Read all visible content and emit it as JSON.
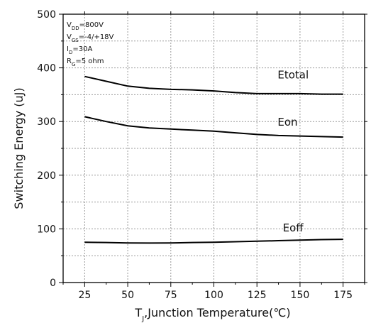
{
  "chart_data": {
    "type": "line",
    "xlabel": {
      "prefix": "T",
      "sub": "J",
      "rest": ",Junction Temperature(℃)"
    },
    "ylabel": "Switching Energy (uJ)",
    "xlim": [
      12.5,
      187.5
    ],
    "ylim": [
      0,
      500
    ],
    "x_ticks": [
      25,
      50,
      75,
      100,
      125,
      150,
      175
    ],
    "y_ticks": [
      0,
      100,
      200,
      300,
      400,
      500
    ],
    "grid": true,
    "conditions": [
      {
        "main": "V",
        "sub": "DD",
        "rest": "=800V"
      },
      {
        "main": "V",
        "sub": "GS",
        "rest": "=-4/+18V"
      },
      {
        "main": "I",
        "sub": "D",
        "rest": "=30A"
      },
      {
        "main": "R",
        "sub": "G",
        "rest": "=5 ohm"
      }
    ],
    "series": [
      {
        "name": "Etotal",
        "label_at": [
          137,
          380
        ],
        "x": [
          25,
          37.5,
          50,
          62.5,
          75,
          87.5,
          100,
          112.5,
          125,
          137.5,
          150,
          162.5,
          175
        ],
        "y": [
          384,
          375,
          366,
          362,
          360,
          359,
          357,
          354,
          352,
          352,
          352,
          351,
          351
        ]
      },
      {
        "name": "Eon",
        "label_at": [
          137,
          292
        ],
        "x": [
          25,
          37.5,
          50,
          62.5,
          75,
          87.5,
          100,
          112.5,
          125,
          137.5,
          150,
          162.5,
          175
        ],
        "y": [
          309,
          300,
          292,
          288,
          286,
          284,
          282,
          279,
          276,
          274,
          273,
          272,
          271
        ]
      },
      {
        "name": "Eoff",
        "label_at": [
          140,
          95
        ],
        "x": [
          25,
          37.5,
          50,
          62.5,
          75,
          87.5,
          100,
          112.5,
          125,
          137.5,
          150,
          162.5,
          175
        ],
        "y": [
          75,
          74.5,
          73.8,
          73.5,
          73.8,
          74.5,
          75,
          76,
          77,
          78,
          79,
          80,
          80.5
        ]
      }
    ]
  }
}
